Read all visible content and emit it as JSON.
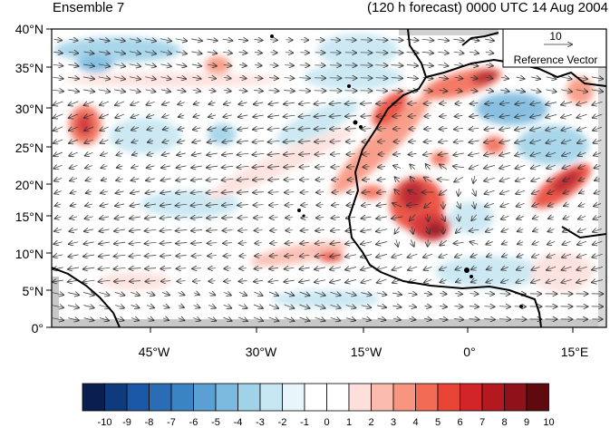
{
  "title": {
    "left": "Ensemble 7",
    "right": "(120 h forecast) 0000 UTC 14 Aug 2004"
  },
  "map": {
    "lat_range": [
      0,
      40
    ],
    "lon_range": [
      -60,
      20
    ],
    "lat_ticks": [
      "0°",
      "5°N",
      "10°N",
      "15°N",
      "20°N",
      "25°N",
      "30°N",
      "35°N",
      "40°N"
    ],
    "lon_ticks": [
      "45°W",
      "30°W",
      "15°W",
      "0°",
      "15°E"
    ],
    "reference_vector": {
      "magnitude": "10",
      "label": "Reference Vector"
    }
  },
  "colorbar": {
    "labels": [
      "-10",
      "-9",
      "-8",
      "-7",
      "-6",
      "-5",
      "-4",
      "-3",
      "-2",
      "-1",
      "0",
      "1",
      "2",
      "3",
      "4",
      "5",
      "6",
      "7",
      "8",
      "9",
      "10"
    ],
    "colors": [
      "#0a1f4e",
      "#0f3a7c",
      "#1a57a6",
      "#2a6db5",
      "#3b84c4",
      "#5aa0d2",
      "#7dbadf",
      "#a0d2e8",
      "#c6e6f2",
      "#e8f5fb",
      "#ffffff",
      "#ffffff",
      "#fde0dc",
      "#fbbcae",
      "#f8957f",
      "#f26c55",
      "#e94536",
      "#d2252a",
      "#b51920",
      "#8f1119",
      "#5e0a0e"
    ]
  }
}
